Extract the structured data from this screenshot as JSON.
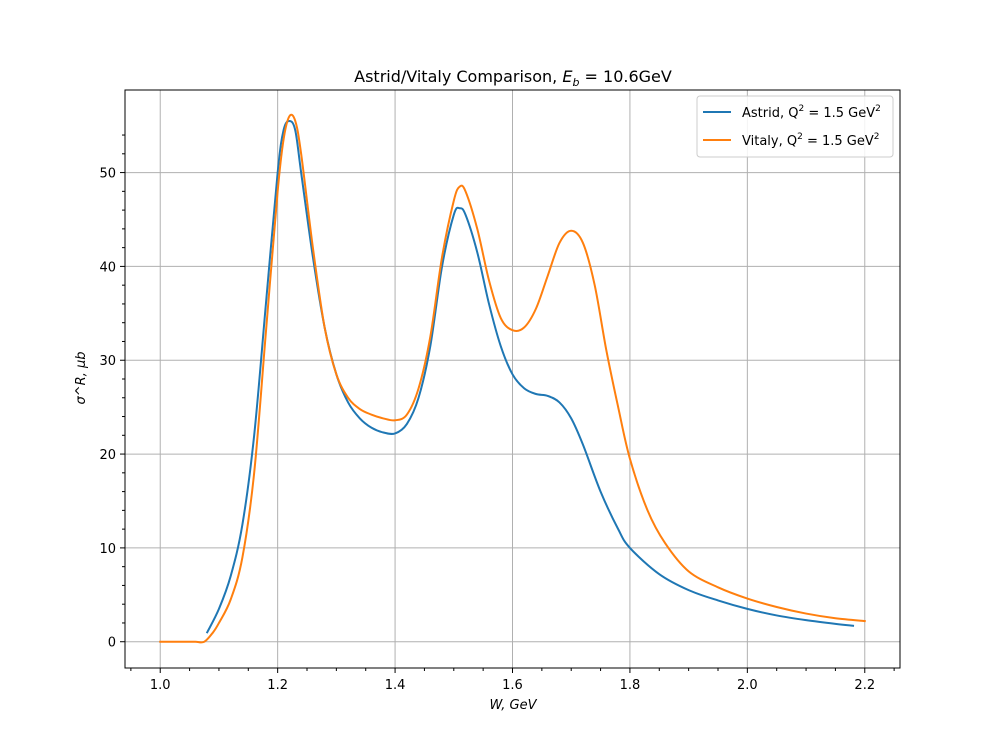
{
  "chart_data": {
    "type": "line",
    "title": "Astrid/Vitaly Comparison, E_b = 10.6GeV",
    "title_parts": {
      "main": "Astrid/Vitaly Comparison, ",
      "sym": "E",
      "sub": "b",
      "rest": " = 10.6GeV"
    },
    "xlabel": "W, GeV",
    "ylabel": "σ^R, μb",
    "xlim": [
      0.94,
      2.26
    ],
    "ylim": [
      -2.8,
      58.8
    ],
    "xticks": [
      1.0,
      1.2,
      1.4,
      1.6,
      1.8,
      2.0,
      2.2
    ],
    "xtick_labels": [
      "1.0",
      "1.2",
      "1.4",
      "1.6",
      "1.8",
      "2.0",
      "2.2"
    ],
    "yticks": [
      0,
      10,
      20,
      30,
      40,
      50
    ],
    "ytick_labels": [
      "0",
      "10",
      "20",
      "30",
      "40",
      "50"
    ],
    "grid": true,
    "legend_position": "top-right",
    "series": [
      {
        "name": "Astrid, Q^2 = 1.5 GeV^2",
        "legend_parts": {
          "prefix": "Astrid, Q",
          "sup": "2",
          "mid": " = 1.5 GeV",
          "sup2": "2"
        },
        "color": "#1f77b4",
        "x": [
          1.08,
          1.1,
          1.12,
          1.14,
          1.16,
          1.18,
          1.2,
          1.21,
          1.22,
          1.23,
          1.24,
          1.26,
          1.28,
          1.3,
          1.32,
          1.34,
          1.36,
          1.38,
          1.4,
          1.42,
          1.44,
          1.46,
          1.48,
          1.5,
          1.51,
          1.52,
          1.54,
          1.56,
          1.58,
          1.6,
          1.62,
          1.64,
          1.66,
          1.68,
          1.7,
          1.72,
          1.75,
          1.78,
          1.8,
          1.85,
          1.9,
          1.95,
          2.0,
          2.05,
          2.1,
          2.15,
          2.18
        ],
        "y": [
          1.0,
          3.5,
          7.0,
          12.5,
          22.0,
          36.0,
          50.0,
          54.5,
          55.5,
          54.5,
          50.0,
          41.0,
          33.5,
          28.5,
          25.5,
          23.8,
          22.8,
          22.3,
          22.2,
          23.2,
          26.0,
          31.5,
          40.0,
          45.5,
          46.2,
          45.5,
          41.5,
          36.0,
          31.5,
          28.5,
          27.0,
          26.4,
          26.2,
          25.5,
          23.8,
          21.0,
          16.0,
          12.0,
          10.0,
          7.2,
          5.5,
          4.4,
          3.5,
          2.8,
          2.3,
          1.9,
          1.7
        ]
      },
      {
        "name": "Vitaly, Q^2 = 1.5 GeV^2",
        "legend_parts": {
          "prefix": "Vitaly, Q",
          "sup": "2",
          "mid": " = 1.5 GeV",
          "sup2": "2"
        },
        "color": "#ff7f0e",
        "x": [
          1.0,
          1.02,
          1.04,
          1.06,
          1.075,
          1.09,
          1.1,
          1.12,
          1.14,
          1.16,
          1.18,
          1.2,
          1.21,
          1.22,
          1.23,
          1.24,
          1.26,
          1.28,
          1.3,
          1.32,
          1.34,
          1.36,
          1.38,
          1.4,
          1.42,
          1.44,
          1.46,
          1.48,
          1.5,
          1.51,
          1.52,
          1.54,
          1.56,
          1.58,
          1.6,
          1.62,
          1.64,
          1.66,
          1.68,
          1.7,
          1.72,
          1.74,
          1.76,
          1.78,
          1.8,
          1.83,
          1.86,
          1.9,
          1.95,
          2.0,
          2.05,
          2.1,
          2.15,
          2.2
        ],
        "y": [
          0,
          0,
          0,
          0,
          0,
          1.0,
          2.0,
          4.5,
          9.0,
          18.0,
          33.0,
          48.0,
          53.5,
          56.0,
          55.5,
          52.0,
          42.0,
          33.5,
          28.5,
          26.0,
          24.8,
          24.2,
          23.8,
          23.6,
          24.2,
          27.0,
          32.5,
          41.0,
          47.0,
          48.5,
          48.0,
          44.0,
          38.5,
          34.5,
          33.2,
          33.5,
          35.5,
          39.0,
          42.5,
          43.8,
          42.5,
          38.0,
          31.0,
          25.0,
          19.5,
          14.0,
          10.5,
          7.5,
          5.8,
          4.6,
          3.7,
          3.0,
          2.5,
          2.2
        ]
      }
    ]
  }
}
